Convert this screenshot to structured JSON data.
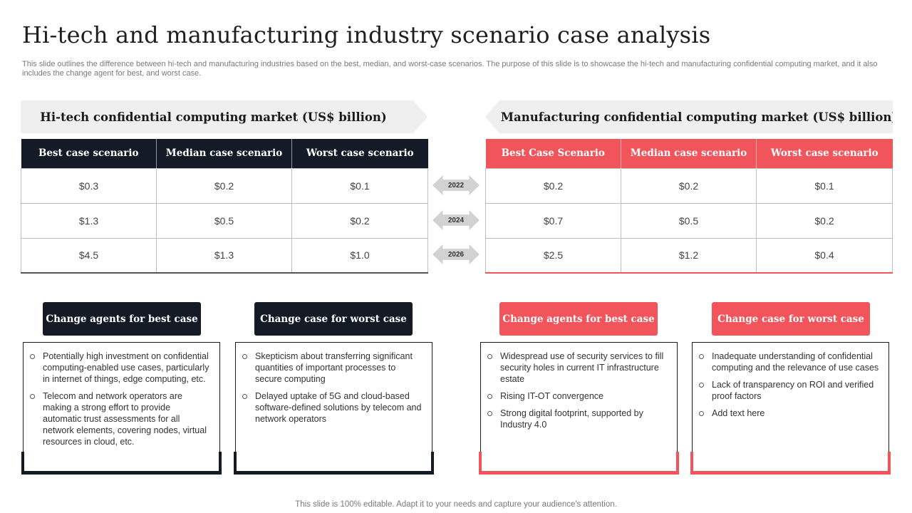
{
  "title": "Hi-tech and manufacturing industry scenario case analysis",
  "subtitle": "This slide outlines the difference between hi-tech and manufacturing industries based on the best, median, and worst-case scenarios. The purpose of this slide is to showcase the hi-tech and manufacturing confidential computing market, and it also includes the change agent for best, and worst case.",
  "hitech": {
    "banner": "Hi-tech confidential computing market (US$ billion)",
    "headers": [
      "Best case scenario",
      "Median case scenario",
      "Worst case scenario"
    ],
    "rows": [
      [
        "$0.3",
        "$0.2",
        "$0.1"
      ],
      [
        "$1.3",
        "$0.5",
        "$0.2"
      ],
      [
        "$4.5",
        "$1.3",
        "$1.0"
      ]
    ]
  },
  "manufacturing": {
    "banner": "Manufacturing confidential computing market (US$ billion)",
    "headers": [
      "Best Case Scenario",
      "Median case scenario",
      "Worst case scenario"
    ],
    "rows": [
      [
        "$0.2",
        "$0.2",
        "$0.1"
      ],
      [
        "$0.7",
        "$0.5",
        "$0.2"
      ],
      [
        "$2.5",
        "$1.2",
        "$0.4"
      ]
    ]
  },
  "years": [
    "2022",
    "2024",
    "2026"
  ],
  "change_boxes": [
    {
      "heading": "Change agents for best case",
      "items": [
        "Potentially high investment on confidential computing-enabled use cases, particularly in internet of things, edge computing, etc.",
        "Telecom and network operators are making a strong effort to provide automatic trust assessments for all network elements, covering nodes, virtual resources in cloud, etc."
      ]
    },
    {
      "heading": "Change case for worst case",
      "items": [
        "Skepticism about transferring significant quantities of important processes to secure computing",
        "Delayed uptake of 5G and cloud-based software-defined  solutions by telecom and network operators"
      ]
    },
    {
      "heading": "Change agents for best case",
      "items": [
        "Widespread use of security services to fill security holes in current IT infrastructure estate",
        "Rising IT-OT  convergence",
        "Strong digital footprint, supported by Industry 4.0"
      ]
    },
    {
      "heading": "Change case for worst case",
      "items": [
        "Inadequate understanding of confidential computing and the relevance  of use cases",
        "Lack of transparency on ROI and verified  proof factors",
        "Add text here"
      ]
    }
  ],
  "footer": "This slide is 100% editable. Adapt it to your needs and capture your audience's attention.",
  "colors": {
    "dark": "#141a26",
    "accent": "#f2545b"
  }
}
